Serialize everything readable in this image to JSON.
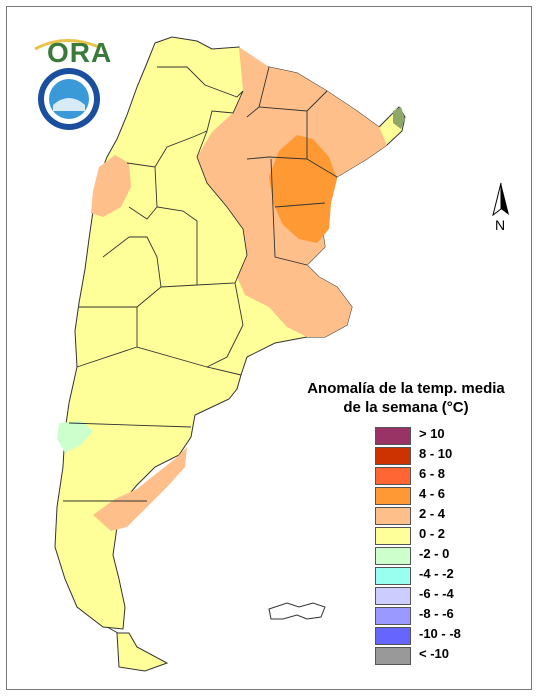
{
  "logos": {
    "ora_text": "ORA",
    "seal_icon": "smn-argentina-seal"
  },
  "north_arrow": {
    "label": "N"
  },
  "legend": {
    "title_line1": "Anomalía de la temp. media",
    "title_line2": "de la semana (°C)",
    "items": [
      {
        "label": "> 10",
        "color": "#993366"
      },
      {
        "label": "8 - 10",
        "color": "#cc3300"
      },
      {
        "label": "6 - 8",
        "color": "#ff6633"
      },
      {
        "label": "4 - 6",
        "color": "#ff9933"
      },
      {
        "label": "2 - 4",
        "color": "#ffbf8a"
      },
      {
        "label": "0 - 2",
        "color": "#ffff99"
      },
      {
        "label": "-2 - 0",
        "color": "#ccffcc"
      },
      {
        "label": "-4 - -2",
        "color": "#99ffee"
      },
      {
        "label": "-6 - -4",
        "color": "#ccccff"
      },
      {
        "label": "-8 - -6",
        "color": "#9999ff"
      },
      {
        "label": "-10 - -8",
        "color": "#6666ff"
      },
      {
        "label": "< -10",
        "color": "#999999"
      }
    ]
  }
}
